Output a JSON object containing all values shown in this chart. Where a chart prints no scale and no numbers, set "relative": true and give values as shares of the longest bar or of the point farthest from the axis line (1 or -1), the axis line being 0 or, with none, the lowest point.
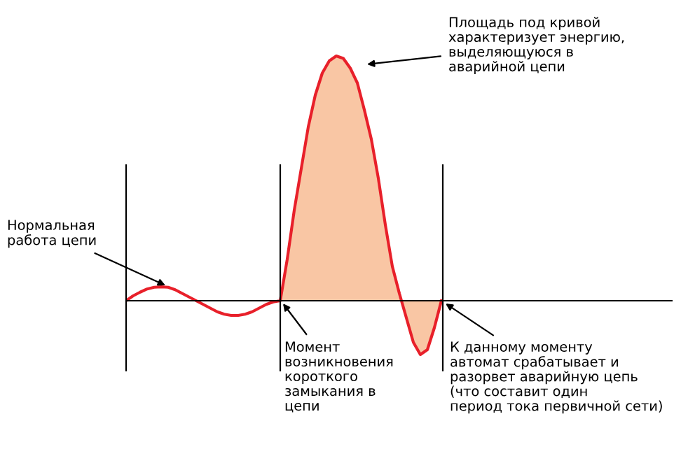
{
  "chart_data": {
    "type": "line",
    "relative": true,
    "grid": false,
    "legend": false,
    "categories": [
      null,
      null,
      null,
      null,
      null,
      null,
      null,
      null,
      null,
      null,
      null,
      null,
      null,
      null,
      null,
      null,
      null,
      null,
      null,
      null,
      null,
      null,
      null,
      null,
      null,
      null,
      null,
      null,
      null,
      null,
      null,
      null,
      null,
      null,
      null,
      null,
      null,
      null,
      null,
      null,
      null,
      null,
      null,
      null,
      null,
      null,
      null,
      null,
      null,
      null,
      null,
      null,
      null,
      null,
      null,
      null,
      null,
      null,
      null,
      null,
      null,
      null,
      null,
      null,
      null,
      null,
      null,
      null,
      null,
      null,
      null,
      null,
      null,
      null,
      null,
      null,
      null,
      null,
      null
    ],
    "series": [
      {
        "type": "area",
        "color": "#f9c6a4",
        "values": [
          null,
          null,
          null,
          null,
          null,
          null,
          null,
          null,
          null,
          null,
          null,
          null,
          null,
          null,
          null,
          null,
          null,
          null,
          null,
          null,
          null,
          null,
          0,
          0.17,
          0.37,
          0.54,
          0.71,
          0.84,
          0.93,
          0.98,
          1,
          0.99,
          0.95,
          0.89,
          0.78,
          0.66,
          0.5,
          0.31,
          0.14,
          0.03,
          -0.07,
          -0.17,
          -0.22,
          -0.2,
          -0.11,
          0,
          null,
          null,
          null,
          null,
          null,
          null,
          null,
          null,
          null,
          null,
          null,
          null,
          null,
          null,
          null,
          null,
          null,
          null,
          null,
          null,
          null,
          null,
          null,
          null,
          null,
          null,
          null,
          null,
          null,
          null,
          null,
          null,
          null
        ]
      },
      {
        "color": "#e8202a",
        "values": [
          0,
          0.02,
          0.035,
          0.048,
          0.055,
          0.057,
          0.055,
          0.045,
          0.03,
          0.015,
          0,
          -0.015,
          -0.03,
          -0.045,
          -0.055,
          -0.06,
          -0.06,
          -0.055,
          -0.045,
          -0.03,
          -0.015,
          -0.005,
          0,
          0.17,
          0.37,
          0.54,
          0.71,
          0.84,
          0.93,
          0.98,
          1,
          0.99,
          0.95,
          0.89,
          0.78,
          0.66,
          0.5,
          0.31,
          0.14,
          0.03,
          -0.07,
          -0.17,
          -0.22,
          -0.2,
          -0.11,
          0,
          null,
          null,
          null,
          null,
          null,
          null,
          null,
          null,
          null,
          null,
          null,
          null,
          null,
          null,
          null,
          null,
          null,
          null,
          null,
          null,
          null,
          null,
          null,
          null,
          null,
          null,
          null,
          null,
          null,
          null,
          null,
          null,
          null
        ]
      }
    ],
    "annotations": [
      "Нормальная\nработа цепи",
      "Площадь под кривой\nхарактеризует энергию,\nвыделяющуюся в\nаварийной цепи",
      "Момент\nвозникновения\nкороткого\nзамыкания в\nцепи",
      "К данному моменту\nавтомат срабатывает и\nразорвет аварийную цепь\n(что составит один\nпериод тока первичной сети)"
    ]
  }
}
